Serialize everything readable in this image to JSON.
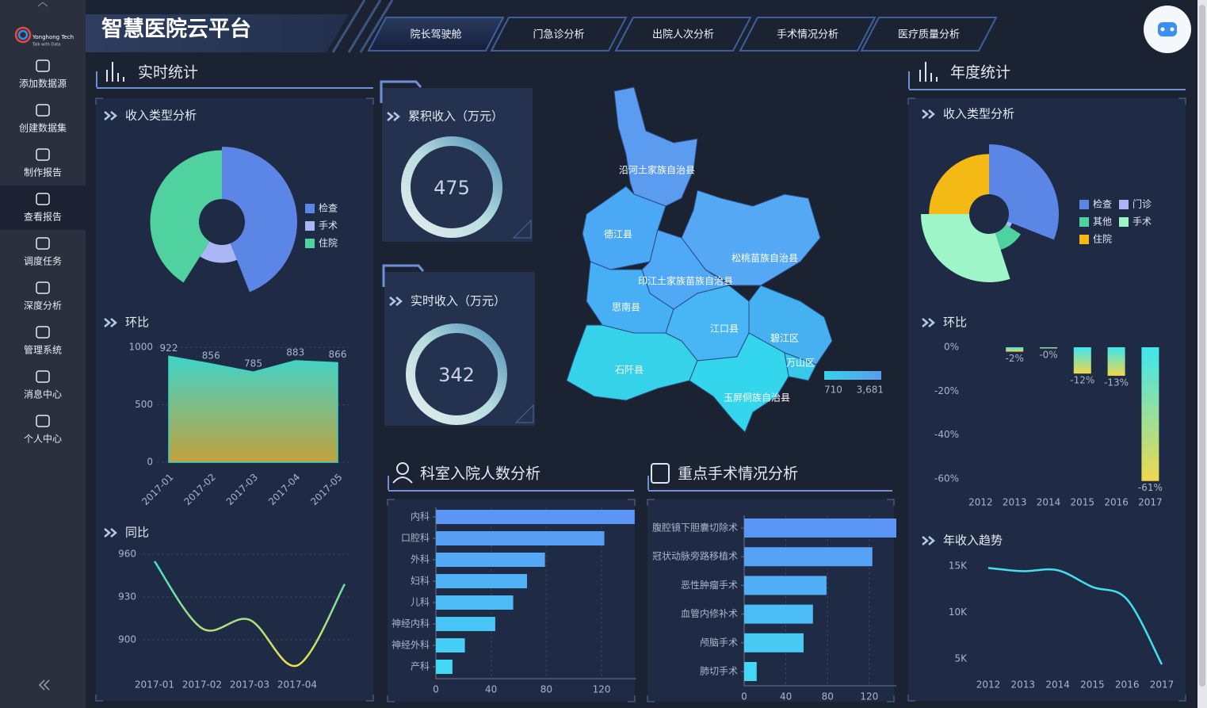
{
  "sidebar": {
    "logo": {
      "name": "Yonghong Tech",
      "slogan": "Talk with Data"
    },
    "items": [
      "添加数据源",
      "创建数据集",
      "制作报告",
      "查看报告",
      "调度任务",
      "深度分析",
      "管理系统",
      "消息中心",
      "个人中心"
    ]
  },
  "header": {
    "title": "智慧医院云平台",
    "tabs": [
      "院长驾驶舱",
      "门急诊分析",
      "出院人次分析",
      "手术情况分析",
      "医疗质量分析"
    ]
  },
  "sections": {
    "realtime": "实时统计",
    "annual": "年度统计"
  },
  "chart_data": [
    {
      "type": "pie",
      "title": "收入类型分析",
      "categories": [
        "检查",
        "手术",
        "住院"
      ],
      "values": [
        44,
        15,
        41
      ],
      "colors": [
        "#5b86e5",
        "#aab6f5",
        "#4fd1a0"
      ],
      "rose": true
    },
    {
      "type": "area",
      "title": "环比",
      "categories": [
        "2017-01",
        "2017-02",
        "2017-03",
        "2017-04",
        "2017-05"
      ],
      "values": [
        922,
        856,
        785,
        883,
        866
      ],
      "ylim": [
        0,
        1000
      ],
      "yticks": [
        0,
        500,
        1000
      ],
      "colors": [
        "#3fd4c8",
        "#c2a13c"
      ],
      "grid": true
    },
    {
      "type": "line",
      "title": "同比",
      "categories": [
        "2017-01",
        "2017-02",
        "2017-03",
        "2017-04",
        null
      ],
      "values": [
        955,
        908,
        914,
        882,
        939
      ],
      "ylim": [
        870,
        970
      ],
      "yticks": [
        900,
        930,
        960
      ],
      "colors": [
        "#3fe0c8",
        "#f0e050"
      ],
      "grid": true,
      "smooth": true
    },
    {
      "type": "gauge",
      "title": "累积收入（万元）",
      "value": 475
    },
    {
      "type": "gauge",
      "title": "实时收入（万元）",
      "value": 342
    },
    {
      "type": "map",
      "regions": [
        {
          "name": "沿河土家族自治县",
          "color": "#5b9bf0"
        },
        {
          "name": "德江县",
          "color": "#4aa8f5"
        },
        {
          "name": "松桃苗族自治县",
          "color": "#55a8f3"
        },
        {
          "name": "印江土家族苗族自治县",
          "color": "#50a9f6"
        },
        {
          "name": "思南县",
          "color": "#47b0f5"
        },
        {
          "name": "江口县",
          "color": "#48b6f4"
        },
        {
          "name": "碧江区",
          "color": "#45b1f0"
        },
        {
          "name": "万山区",
          "color": "#38c8ea"
        },
        {
          "name": "石阡县",
          "color": "#36d2ea"
        },
        {
          "name": "玉屏侗族自治县",
          "color": "#33d6ec"
        }
      ],
      "range": [
        710,
        {
          "value": 3681,
          "label": "3,681"
        }
      ],
      "range_colors": [
        "#36d2ea",
        "#5b9bf0"
      ]
    },
    {
      "type": "hbar",
      "title": "科室入院人数分析",
      "categories": [
        "内科",
        "口腔科",
        "外科",
        "妇科",
        "儿科",
        "神经内科",
        "神经外科",
        "产科"
      ],
      "values": [
        144,
        122,
        79,
        66,
        56,
        43,
        21,
        12
      ],
      "xlim": [
        0,
        145
      ],
      "xticks": [
        0,
        40,
        80,
        120
      ],
      "colors": [
        "#5b95f5",
        "#42d8f5"
      ],
      "grid": true
    },
    {
      "type": "hbar",
      "title": "重点手术情况分析",
      "categories": [
        "腹腔镜下胆囊切除术",
        "冠状动脉旁路移植术",
        "恶性肿瘤手术",
        "血管内修补术",
        "颅脑手术",
        "肺切手术"
      ],
      "values": [
        146,
        123,
        79,
        66,
        57,
        12
      ],
      "xlim": [
        0,
        146
      ],
      "xticks": [
        0,
        40,
        80,
        120
      ],
      "colors": [
        "#5b95f5",
        "#42d8f5"
      ],
      "grid": true
    },
    {
      "type": "pie",
      "title": "收入类型分析",
      "categories": [
        "检查",
        "门诊",
        "其他",
        "手术",
        "住院"
      ],
      "values": [
        31,
        3,
        11,
        30,
        25
      ],
      "colors": [
        "#5b86e5",
        "#aab6f5",
        "#4fd1a0",
        "#9ef5c8",
        "#f5b916"
      ],
      "rose": true
    },
    {
      "type": "bar",
      "title": "环比",
      "categories": [
        "2012",
        "2013",
        "2014",
        "2015",
        "2016",
        "2017"
      ],
      "values": [
        null,
        -2,
        -0.4,
        -12,
        -13,
        -61
      ],
      "value_labels": [
        null,
        "-2%",
        "-0%",
        "-12%",
        "-13%",
        "-61%"
      ],
      "ylim": [
        -64,
        3
      ],
      "yticks": [
        {
          "value": 0,
          "label": "0%"
        },
        {
          "value": -20,
          "label": "-20%"
        },
        {
          "value": -40,
          "label": "-40%"
        },
        {
          "value": -60,
          "label": "-60%"
        }
      ],
      "colors": [
        "#3ee6f0",
        "#f0d84a"
      ]
    },
    {
      "type": "line",
      "title": "年收入趋势",
      "categories": [
        "2012",
        "2013",
        "2014",
        "2015",
        "2016",
        "2017"
      ],
      "values": [
        14800,
        14450,
        14550,
        12750,
        11400,
        4400
      ],
      "ylim": [
        3000,
        16000
      ],
      "yticks": [
        {
          "value": 5000,
          "label": "5K"
        },
        {
          "value": 10000,
          "label": "10K"
        },
        {
          "value": 15000,
          "label": "15K"
        }
      ],
      "colors": [
        "#40e0f0",
        "#40e0f0"
      ],
      "smooth": true
    }
  ]
}
